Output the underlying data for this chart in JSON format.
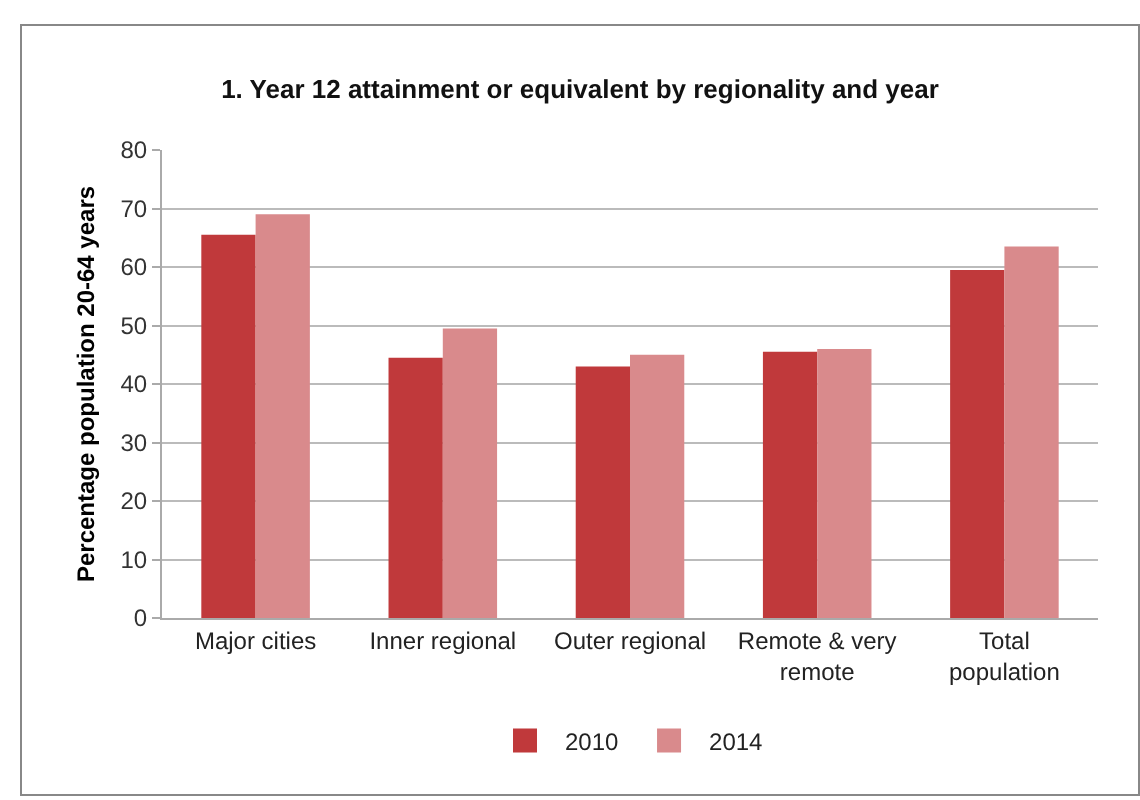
{
  "chart_data": {
    "type": "bar",
    "title": "1. Year 12 attainment or equivalent by regionality and year",
    "ylabel": "Percentage population 20-64 years",
    "categories": [
      "Major cities",
      "Inner regional",
      "Outer regional",
      "Remote & very remote",
      "Total population"
    ],
    "series": [
      {
        "name": "2010",
        "color": "#c0393b",
        "values": [
          65.5,
          44.5,
          43,
          45.5,
          59.5
        ]
      },
      {
        "name": "2014",
        "color": "#d98a8c",
        "values": [
          69,
          49.5,
          45,
          46,
          63.5
        ]
      }
    ],
    "ylim": [
      0,
      80
    ],
    "yticks": [
      0,
      10,
      20,
      30,
      40,
      50,
      60,
      70,
      80
    ],
    "grid": "y",
    "legend": "bottom"
  }
}
